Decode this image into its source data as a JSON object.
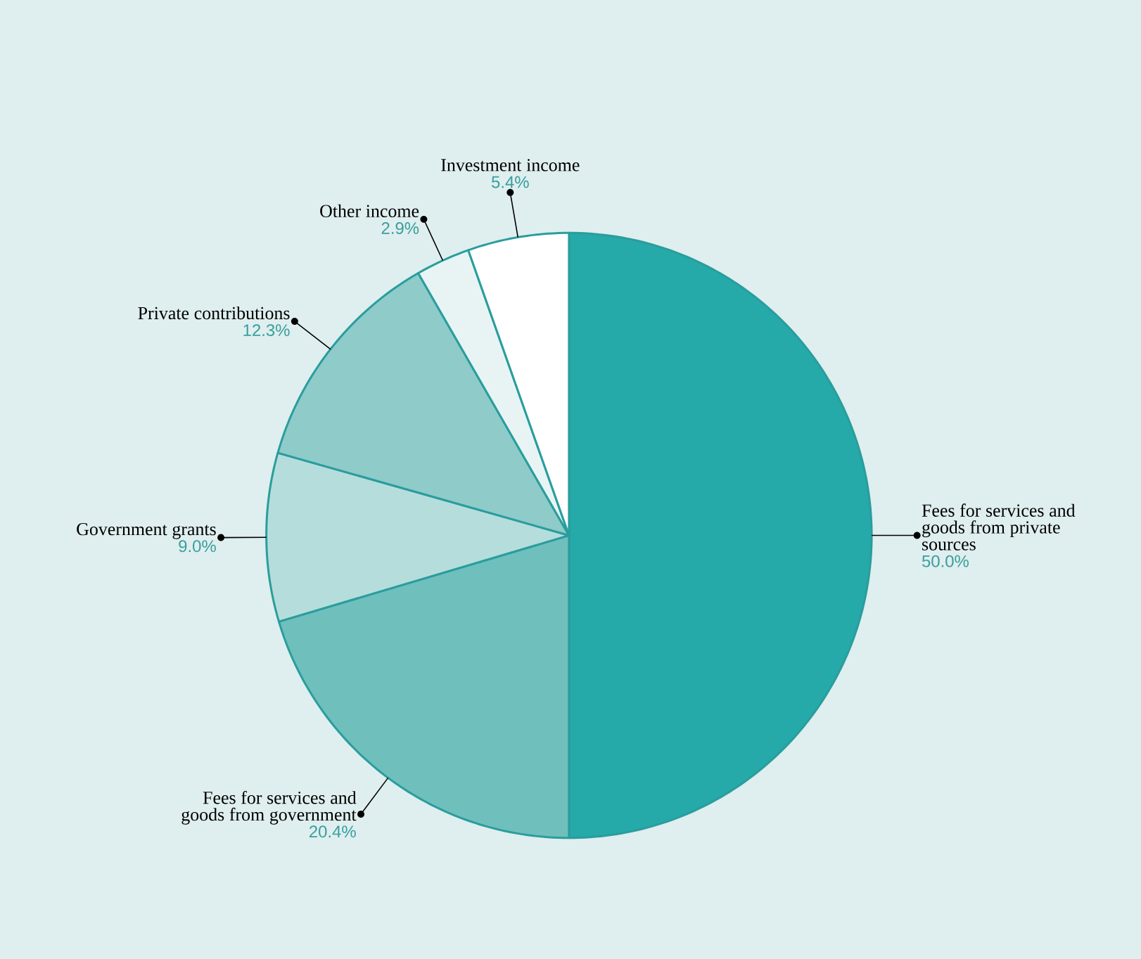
{
  "chart_data": {
    "type": "pie",
    "categories": [
      "Fees for services and goods from private sources",
      "Fees for services and goods from government",
      "Government grants",
      "Private contributions",
      "Other income",
      "Investment income"
    ],
    "values": [
      50.0,
      20.4,
      9.0,
      12.3,
      2.9,
      5.4
    ],
    "value_labels": [
      "50.0%",
      "20.4%",
      "9.0%",
      "12.3%",
      "2.9%",
      "5.4%"
    ],
    "colors": [
      "#26a9a9",
      "#6fbfbd",
      "#b5dddc",
      "#8fcbc9",
      "#e8f4f4",
      "#ffffff"
    ]
  }
}
